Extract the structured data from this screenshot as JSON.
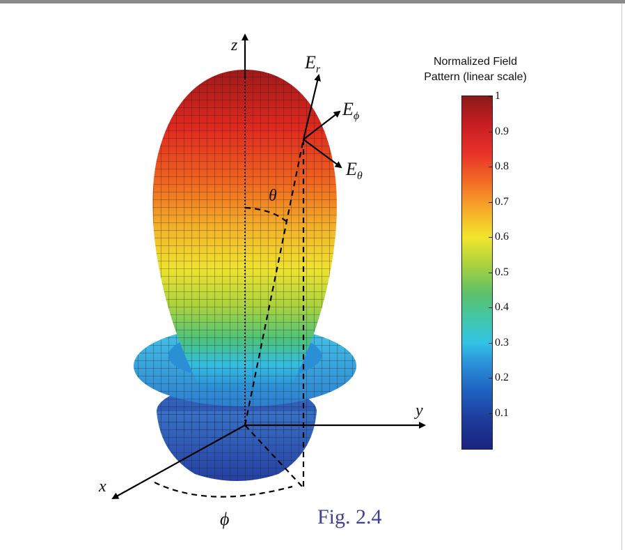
{
  "figure": {
    "caption": "Fig. 2.4",
    "axes": {
      "z": "z",
      "y": "y",
      "x": "x",
      "phi": "ϕ",
      "theta": "θ"
    },
    "field_components": {
      "er": "E",
      "er_sub": "r",
      "ephi": "E",
      "ephi_sub": "ϕ",
      "etheta": "E",
      "etheta_sub": "θ"
    }
  },
  "colorbar": {
    "title_line1": "Normalized Field",
    "title_line2": "Pattern (linear scale)",
    "ticks": [
      "1",
      "0.9",
      "0.8",
      "0.7",
      "0.6",
      "0.5",
      "0.4",
      "0.3",
      "0.2",
      "0.1"
    ],
    "colors": {
      "low": "#1a237e",
      "mid": "#f2e52b",
      "high": "#8b1a1a"
    }
  }
}
